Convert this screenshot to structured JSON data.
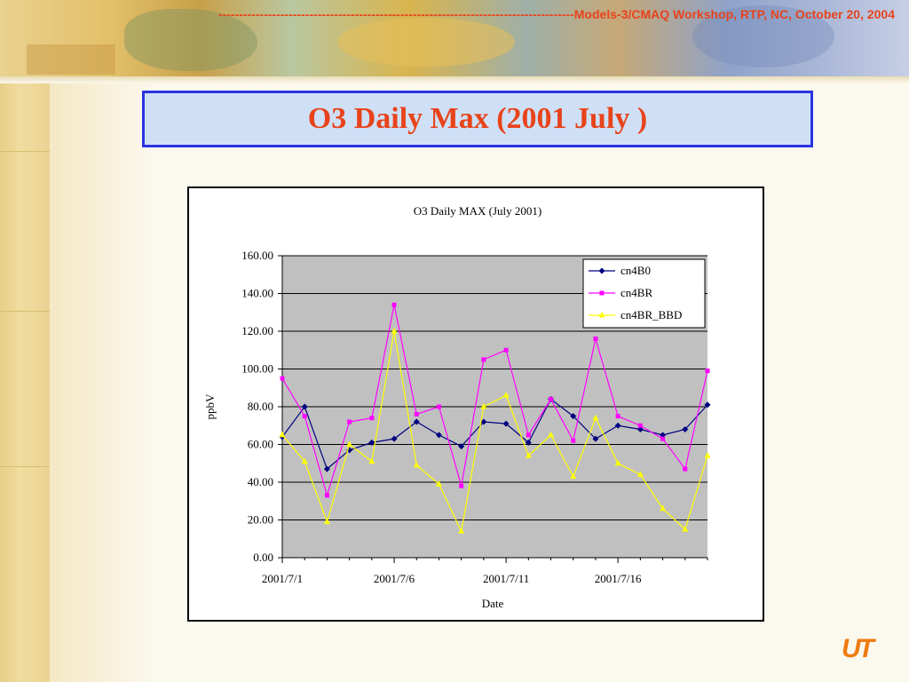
{
  "header": {
    "dashes": "--------------------------------------------------------------------------------------",
    "text": "Models-3/CMAQ Workshop, RTP, NC, October 20, 2004"
  },
  "slide": {
    "title": "O3 Daily Max (2001 July )"
  },
  "logo": {
    "text": "UT"
  },
  "colors": {
    "title_text": "#e8431b",
    "title_border": "#2a34e0",
    "title_bg": "#cfe0f6",
    "plot_bg": "#c0c0c0",
    "logo": "#ef7a10"
  },
  "chart_data": {
    "type": "line",
    "title": "O3 Daily MAX (July 2001)",
    "xlabel": "Date",
    "ylabel": "ppbV",
    "ylim": [
      0,
      160
    ],
    "yticks": [
      "0.00",
      "20.00",
      "40.00",
      "60.00",
      "80.00",
      "100.00",
      "120.00",
      "140.00",
      "160.00"
    ],
    "xtick_labels": [
      "2001/7/1",
      "2001/7/6",
      "2001/7/11",
      "2001/7/16"
    ],
    "x": [
      "2001/7/1",
      "2001/7/2",
      "2001/7/3",
      "2001/7/4",
      "2001/7/5",
      "2001/7/6",
      "2001/7/7",
      "2001/7/8",
      "2001/7/9",
      "2001/7/10",
      "2001/7/11",
      "2001/7/12",
      "2001/7/13",
      "2001/7/14",
      "2001/7/15",
      "2001/7/16",
      "2001/7/17",
      "2001/7/18",
      "2001/7/19",
      "2001/7/20"
    ],
    "grid": true,
    "legend_position": "top-right",
    "series": [
      {
        "name": "cn4B0",
        "color": "#000080",
        "marker": "diamond",
        "values": [
          64,
          80,
          47,
          57,
          61,
          63,
          72,
          65,
          59,
          72,
          71,
          61,
          84,
          75,
          63,
          70,
          68,
          65,
          68,
          81
        ]
      },
      {
        "name": "cn4BR",
        "color": "#ff00ff",
        "marker": "square",
        "values": [
          95,
          75,
          33,
          72,
          74,
          134,
          76,
          80,
          38,
          105,
          110,
          65,
          84,
          62,
          116,
          75,
          70,
          63,
          47,
          99
        ]
      },
      {
        "name": "cn4BR_BBD",
        "color": "#ffff00",
        "marker": "triangle",
        "values": [
          65,
          51,
          19,
          60,
          51,
          120,
          49,
          39,
          14,
          80,
          86,
          54,
          65,
          43,
          74,
          50,
          44,
          26,
          15,
          54
        ]
      }
    ]
  }
}
